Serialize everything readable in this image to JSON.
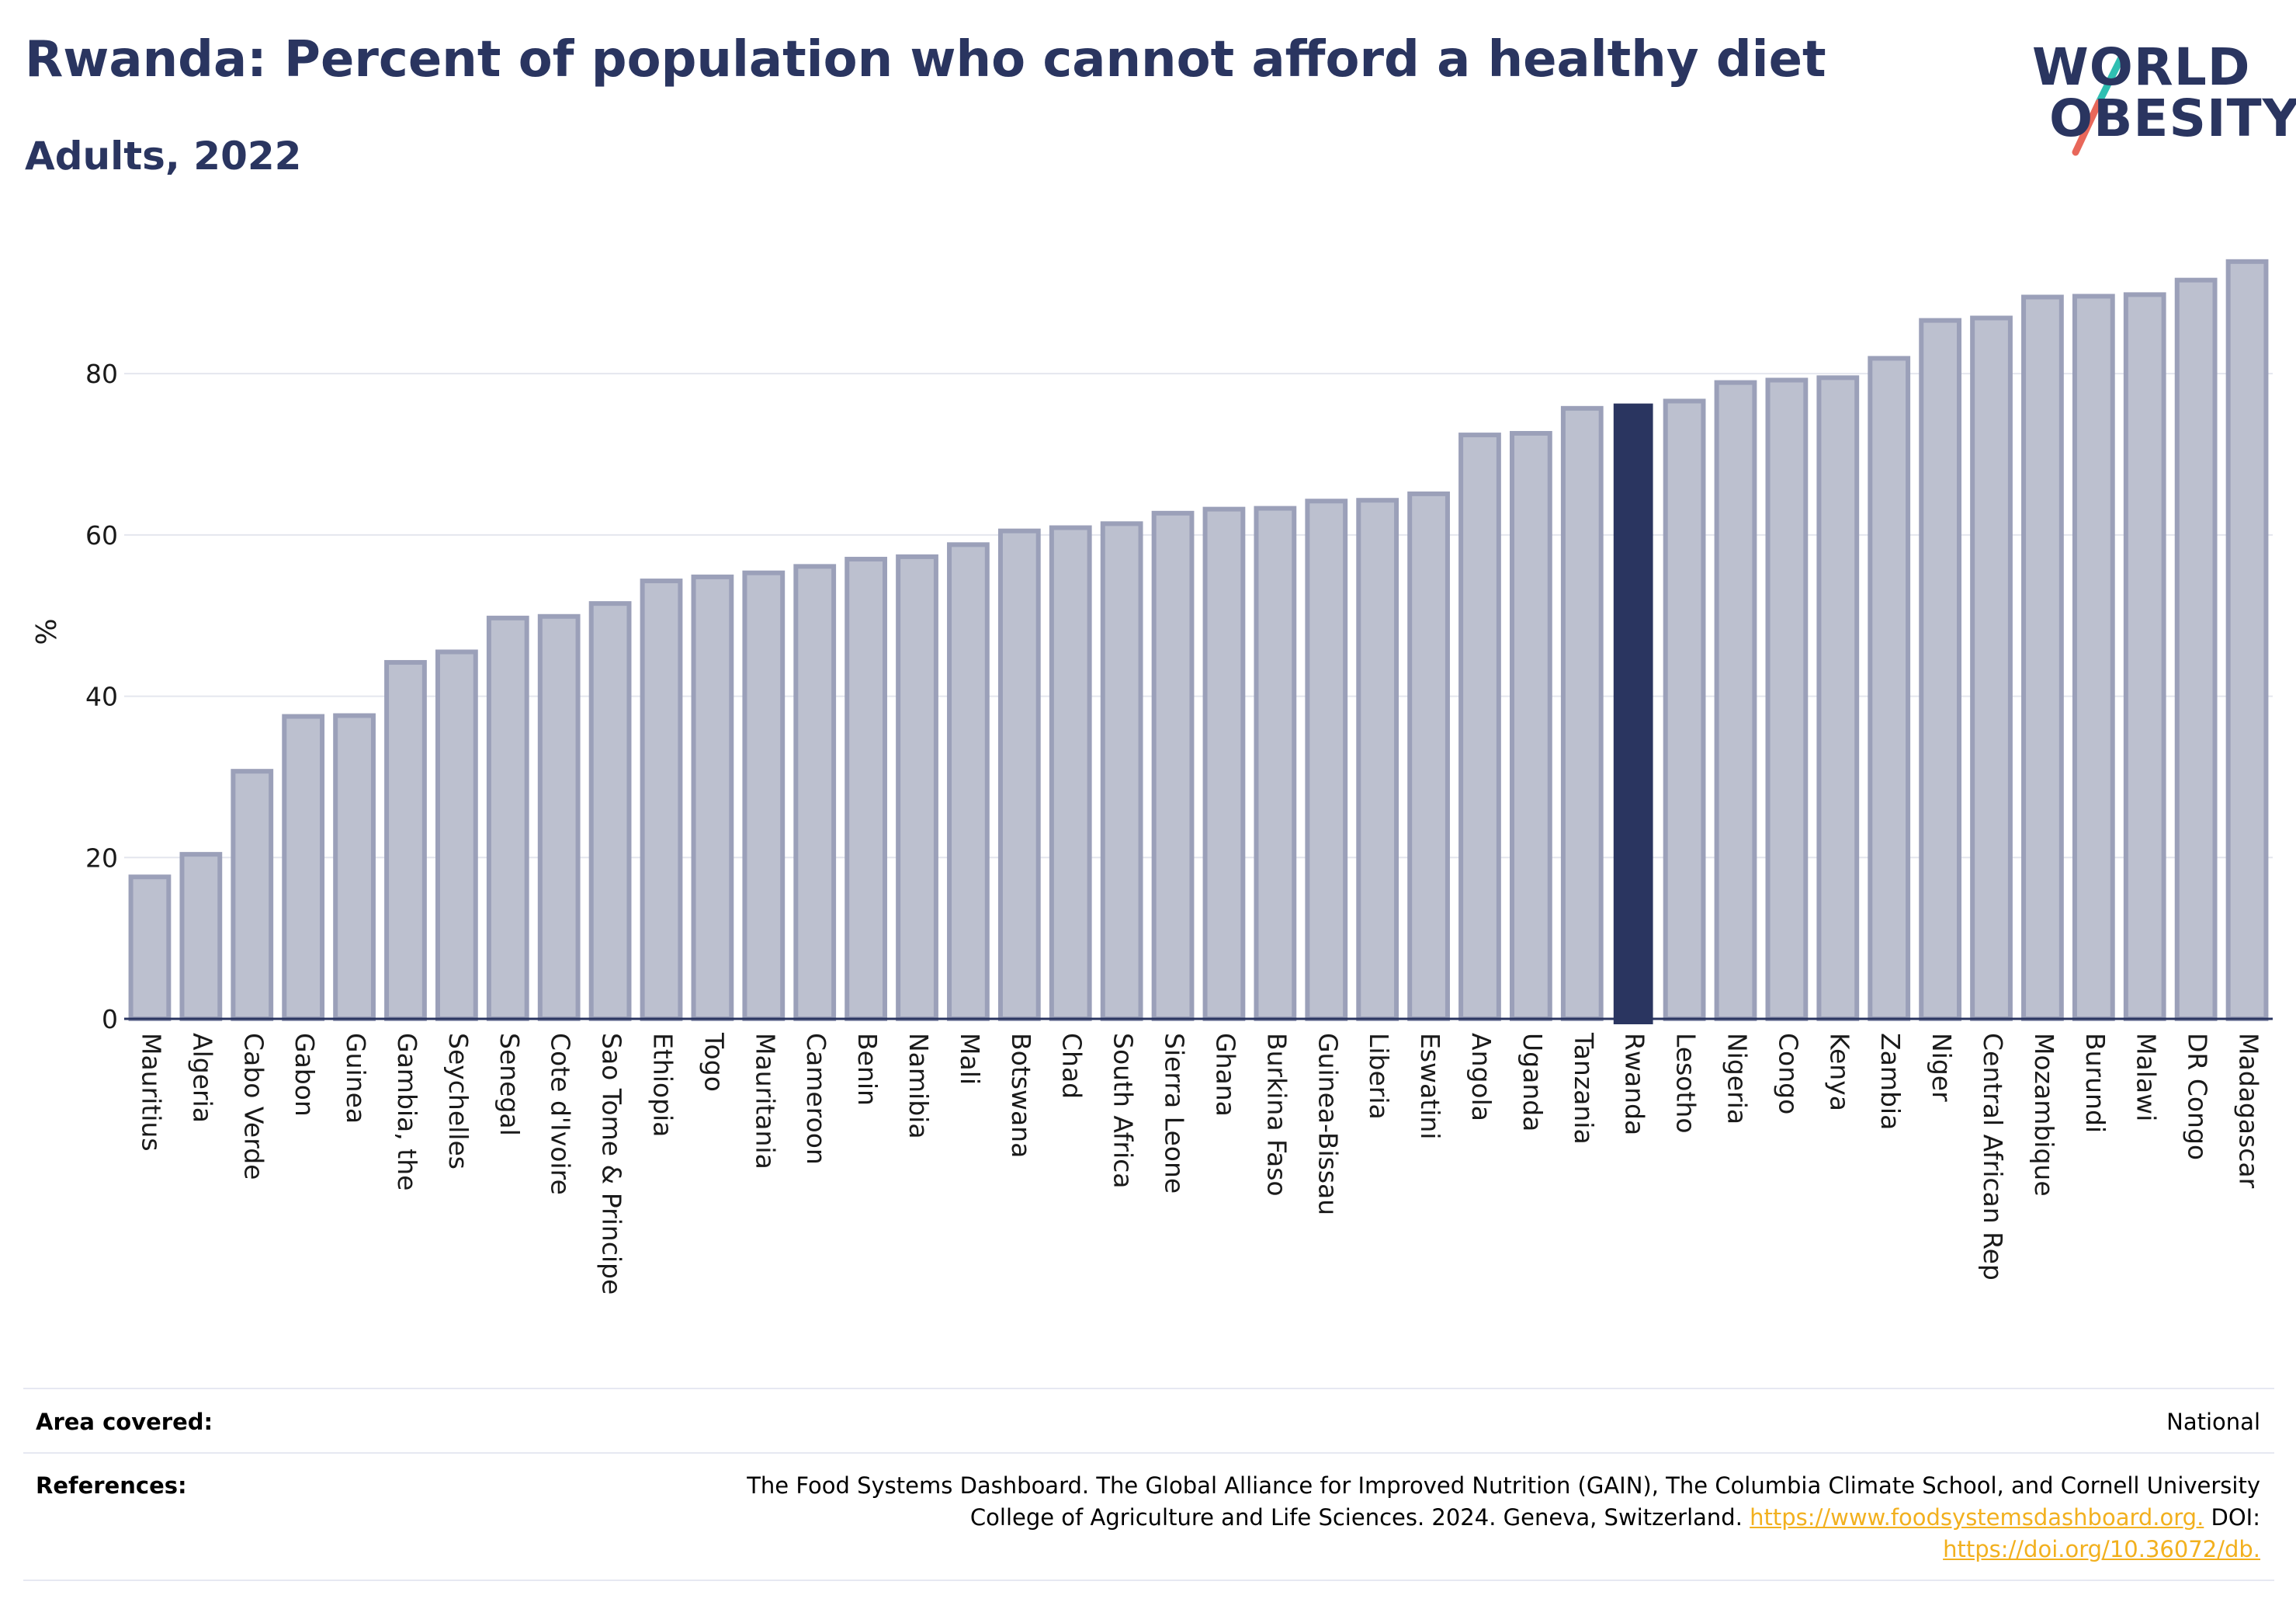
{
  "header": {
    "title": "Rwanda: Percent of population who cannot afford a healthy diet",
    "subtitle": "Adults, 2022"
  },
  "logo": {
    "line1": "WORLD",
    "line2": "OBESITY",
    "colors": {
      "text": "#2a3560",
      "slash_teal": "#2fbfb2",
      "slash_red": "#e8675a"
    }
  },
  "chart_data": {
    "type": "bar",
    "ylabel": "%",
    "xlabel": "",
    "ylim": [
      0,
      96
    ],
    "yticks": [
      0,
      20,
      40,
      60,
      80
    ],
    "grid": true,
    "highlight": "Rwanda",
    "colors": {
      "bar": "#bcc0cf",
      "bar_border": "#9ba0b9",
      "highlight": "#2a3560",
      "grid": "#e4e6ee",
      "axis": "#2a3560"
    },
    "categories": [
      "Mauritius",
      "Algeria",
      "Cabo Verde",
      "Gabon",
      "Guinea",
      "Gambia, the",
      "Seychelles",
      "Senegal",
      "Cote d'Ivoire",
      "Sao Tome & Principe",
      "Ethiopia",
      "Togo",
      "Mauritania",
      "Cameroon",
      "Benin",
      "Namibia",
      "Mali",
      "Botswana",
      "Chad",
      "South Africa",
      "Sierra Leone",
      "Ghana",
      "Burkina Faso",
      "Guinea-Bissau",
      "Liberia",
      "Eswatini",
      "Angola",
      "Uganda",
      "Tanzania",
      "Rwanda",
      "Lesotho",
      "Nigeria",
      "Congo",
      "Kenya",
      "Zambia",
      "Niger",
      "Central African Rep",
      "Mozambique",
      "Burundi",
      "Malawi",
      "DR Congo",
      "Madagascar"
    ],
    "values": [
      17.6,
      20.4,
      30.7,
      37.5,
      37.6,
      44.2,
      45.5,
      49.7,
      49.9,
      51.5,
      54.3,
      54.8,
      55.3,
      56.1,
      57.0,
      57.3,
      58.8,
      60.5,
      60.9,
      61.4,
      62.7,
      63.2,
      63.3,
      64.2,
      64.3,
      65.1,
      72.4,
      72.6,
      75.7,
      76.2,
      76.6,
      78.9,
      79.2,
      79.5,
      81.9,
      86.6,
      86.9,
      89.5,
      89.6,
      89.8,
      91.6,
      93.9
    ]
  },
  "footer": {
    "area_label": "Area covered:",
    "area_value": "National",
    "references_label": "References:",
    "ref_line1": "The Food Systems Dashboard. The Global Alliance for Improved Nutrition (GAIN), The Columbia Climate School, and Cornell University",
    "ref_line2_text": "College of Agriculture and Life Sciences. 2024. Geneva, Switzerland. ",
    "ref_link1": "https://www.foodsystemsdashboard.org.",
    "ref_doi": " DOI:",
    "ref_link2": "https://doi.org/10.36072/db."
  }
}
